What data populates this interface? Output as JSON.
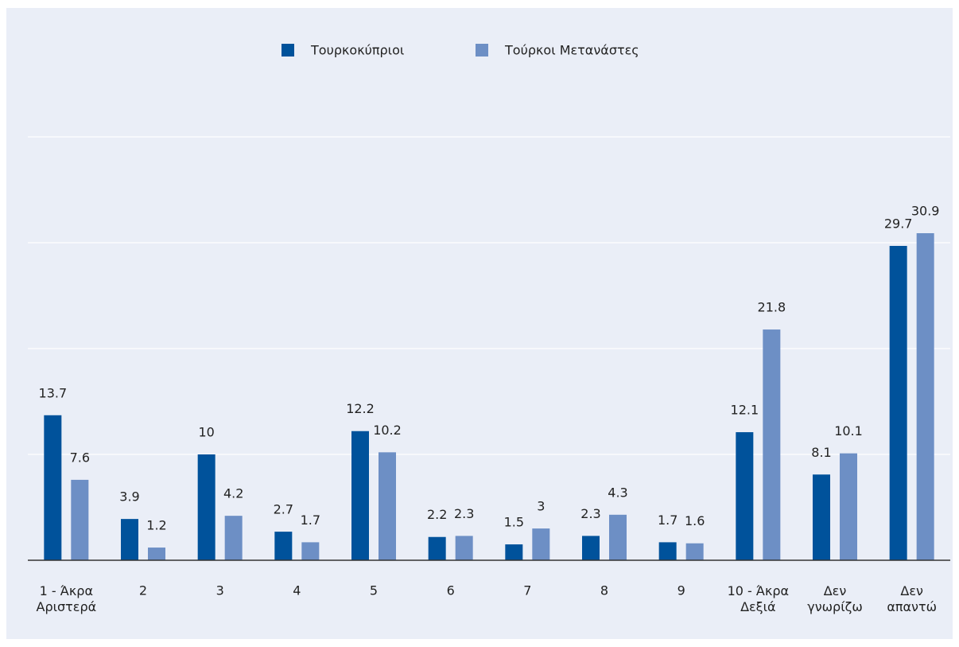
{
  "chart_data": {
    "type": "bar",
    "categories": [
      "1 - Άκρα\nΑριστερά",
      "2",
      "3",
      "4",
      "5",
      "6",
      "7",
      "8",
      "9",
      "10 - Άκρα\nΔεξιά",
      "Δεν\nγνωρίζω",
      "Δεν\nαπαντώ"
    ],
    "series": [
      {
        "name": "Τουρκοκύπριοι",
        "color": "#00529b",
        "values": [
          13.7,
          3.9,
          10,
          2.7,
          12.2,
          2.2,
          1.5,
          2.3,
          1.7,
          12.1,
          8.1,
          29.7
        ]
      },
      {
        "name": "Τούρκοι Μετανάστες",
        "color": "#6d8fc5",
        "values": [
          7.6,
          1.2,
          4.2,
          1.7,
          10.2,
          2.3,
          3,
          4.3,
          1.6,
          21.8,
          10.1,
          30.9
        ]
      }
    ],
    "ylim": [
      0,
      40
    ],
    "yticks": [
      0,
      10,
      20,
      30,
      40
    ],
    "grid": true,
    "legend": "top"
  }
}
